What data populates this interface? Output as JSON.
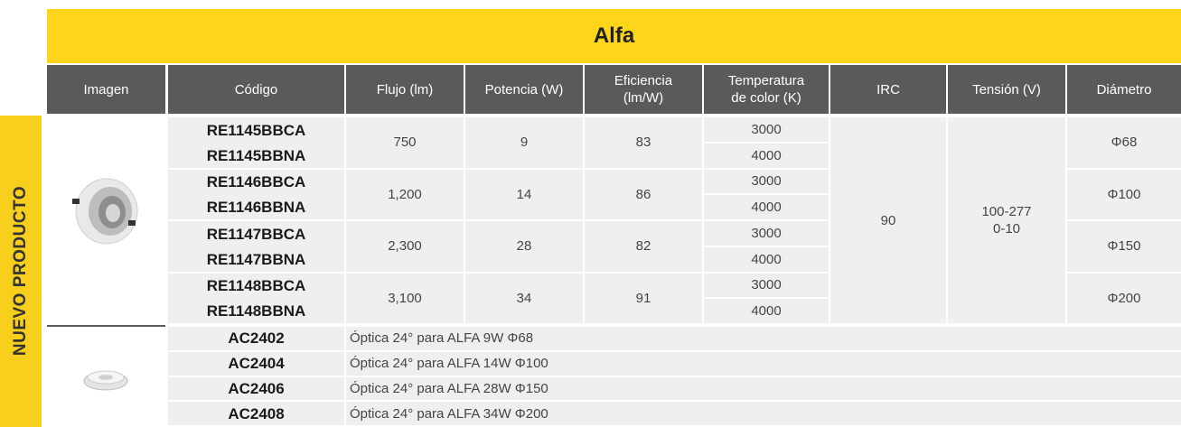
{
  "header": {
    "title": "Alfa"
  },
  "side_label": "NUEVO PRODUCTO",
  "columns": [
    [
      "Imagen"
    ],
    [
      "Código"
    ],
    [
      "Flujo (lm)"
    ],
    [
      "Potencia (W)"
    ],
    [
      "Eficiencia",
      "(lm/W)"
    ],
    [
      "Temperatura",
      "de color (K)"
    ],
    [
      "IRC"
    ],
    [
      "Tensión (V)"
    ],
    [
      "Diámetro"
    ]
  ],
  "products": [
    {
      "codes": [
        "RE1145BBCA",
        "RE1145BBNA"
      ],
      "flux": "750",
      "power": "9",
      "efficiency": "83",
      "temps": [
        "3000",
        "4000"
      ],
      "diameter": "Φ68"
    },
    {
      "codes": [
        "RE1146BBCA",
        "RE1146BBNA"
      ],
      "flux": "1,200",
      "power": "14",
      "efficiency": "86",
      "temps": [
        "3000",
        "4000"
      ],
      "diameter": "Φ100"
    },
    {
      "codes": [
        "RE1147BBCA",
        "RE1147BBNA"
      ],
      "flux": "2,300",
      "power": "28",
      "efficiency": "82",
      "temps": [
        "3000",
        "4000"
      ],
      "diameter": "Φ150"
    },
    {
      "codes": [
        "RE1148BBCA",
        "RE1148BBNA"
      ],
      "flux": "3,100",
      "power": "34",
      "efficiency": "91",
      "temps": [
        "3000",
        "4000"
      ],
      "diameter": "Φ200"
    }
  ],
  "irc": "90",
  "voltage": [
    "100-277",
    "0-10"
  ],
  "accessories": [
    {
      "code": "AC2402",
      "description": "Óptica 24° para ALFA 9W Φ68"
    },
    {
      "code": "AC2404",
      "description": "Óptica 24° para ALFA 14W Φ100"
    },
    {
      "code": "AC2406",
      "description": "Óptica 24° para ALFA 28W Φ150"
    },
    {
      "code": "AC2408",
      "description": "Óptica 24° para ALFA 34W Φ200"
    }
  ]
}
